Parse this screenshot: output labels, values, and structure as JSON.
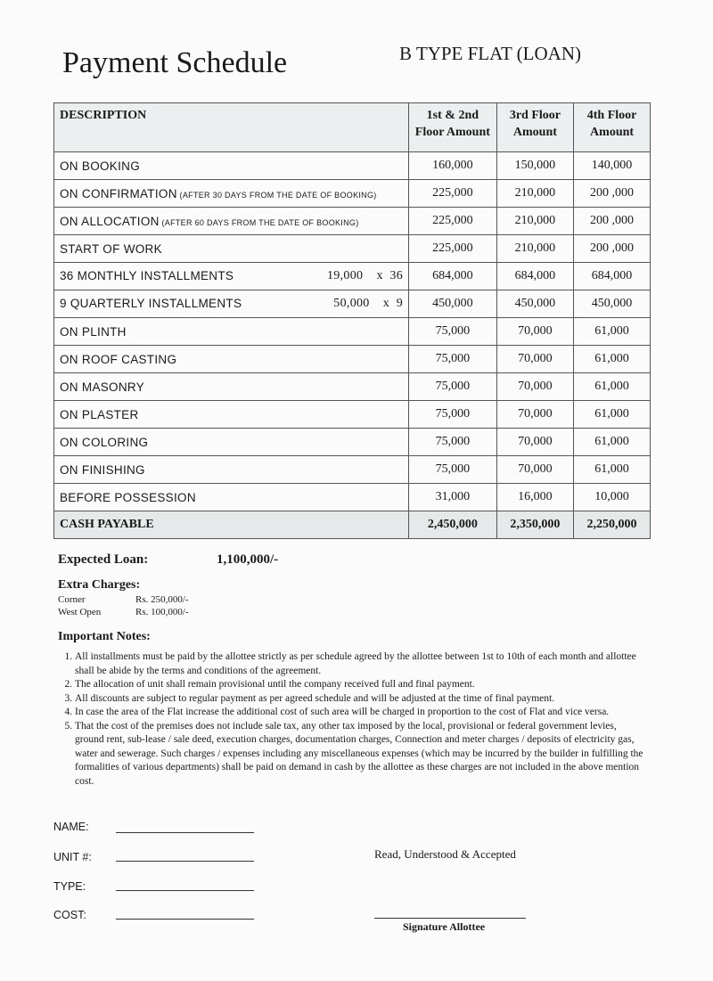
{
  "title": "Payment Schedule",
  "subtitle": "B TYPE FLAT (LOAN)",
  "table": {
    "headers": [
      "DESCRIPTION",
      "1st & 2nd Floor Amount",
      "3rd Floor Amount",
      "4th Floor Amount"
    ],
    "rows": [
      {
        "desc": "ON BOOKING",
        "note": "",
        "rate": "",
        "v": [
          "160,000",
          "150,000",
          "140,000"
        ]
      },
      {
        "desc": "ON CONFIRMATION",
        "note": " (AFTER 30 DAYS FROM THE DATE OF BOOKING)",
        "rate": "",
        "v": [
          "225,000",
          "210,000",
          "200 ,000"
        ]
      },
      {
        "desc": "ON ALLOCATION",
        "note": " (AFTER 60 DAYS FROM THE DATE OF BOOKING)",
        "rate": "",
        "v": [
          "225,000",
          "210,000",
          "200 ,000"
        ]
      },
      {
        "desc": "START OF WORK",
        "note": "",
        "rate": "",
        "v": [
          "225,000",
          "210,000",
          "200 ,000"
        ]
      },
      {
        "desc": "36 MONTHLY INSTALLMENTS",
        "note": "",
        "rate": "19,000    x  36",
        "v": [
          "684,000",
          "684,000",
          "684,000"
        ]
      },
      {
        "desc": "9 QUARTERLY INSTALLMENTS",
        "note": "",
        "rate": "50,000    x  9",
        "v": [
          "450,000",
          "450,000",
          "450,000"
        ]
      },
      {
        "desc": "ON PLINTH",
        "note": "",
        "rate": "",
        "v": [
          "75,000",
          "70,000",
          "61,000"
        ]
      },
      {
        "desc": "ON ROOF CASTING",
        "note": "",
        "rate": "",
        "v": [
          "75,000",
          "70,000",
          "61,000"
        ]
      },
      {
        "desc": "ON MASONRY",
        "note": "",
        "rate": "",
        "v": [
          "75,000",
          "70,000",
          "61,000"
        ]
      },
      {
        "desc": "ON PLASTER",
        "note": "",
        "rate": "",
        "v": [
          "75,000",
          "70,000",
          "61,000"
        ]
      },
      {
        "desc": "ON COLORING",
        "note": "",
        "rate": "",
        "v": [
          "75,000",
          "70,000",
          "61,000"
        ]
      },
      {
        "desc": "ON FINISHING",
        "note": "",
        "rate": "",
        "v": [
          "75,000",
          "70,000",
          "61,000"
        ]
      },
      {
        "desc": "BEFORE POSSESSION",
        "note": "",
        "rate": "",
        "v": [
          "31,000",
          "16,000",
          "10,000"
        ]
      }
    ],
    "total": {
      "desc": "CASH PAYABLE",
      "v": [
        "2,450,000",
        "2,350,000",
        "2,250,000"
      ]
    }
  },
  "loan": {
    "label": "Expected Loan:",
    "value": "1,100,000/-"
  },
  "extra": {
    "heading": "Extra Charges:",
    "items": [
      {
        "label": "Corner",
        "value": "Rs. 250,000/-"
      },
      {
        "label": "West Open",
        "value": "Rs. 100,000/-"
      }
    ]
  },
  "notes": {
    "heading": "Important Notes:",
    "items": [
      "All installments must be paid by the allottee strictly as per schedule agreed by the allottee between 1st to 10th of each month and allottee shall be abide by the terms and conditions of the agreement.",
      "The allocation of unit shall remain provisional until the company received full and final payment.",
      "All discounts are subject to regular payment as per agreed schedule and will be adjusted at the time of final payment.",
      "In case the area of the Flat increase the additional cost of such area will be charged in proportion to the cost of Flat and vice versa.",
      "That the cost of the premises does not include sale tax, any other tax imposed by the local, provisional or federal government levies, ground rent, sub-lease / sale deed, execution charges, documentation charges, Connection and meter charges / deposits of electricity gas, water and sewerage. Such charges / expenses including any miscellaneous expenses (which may be incurred by the builder in fulfilling the formalities of various departments) shall be paid on demand in cash by the allottee as these charges are not included in the above mention cost."
    ]
  },
  "form": {
    "fields": [
      "NAME:",
      "UNIT #:",
      "TYPE:",
      "COST:"
    ],
    "accepted": "Read, Understood & Accepted",
    "signature": "Signature Allottee"
  }
}
